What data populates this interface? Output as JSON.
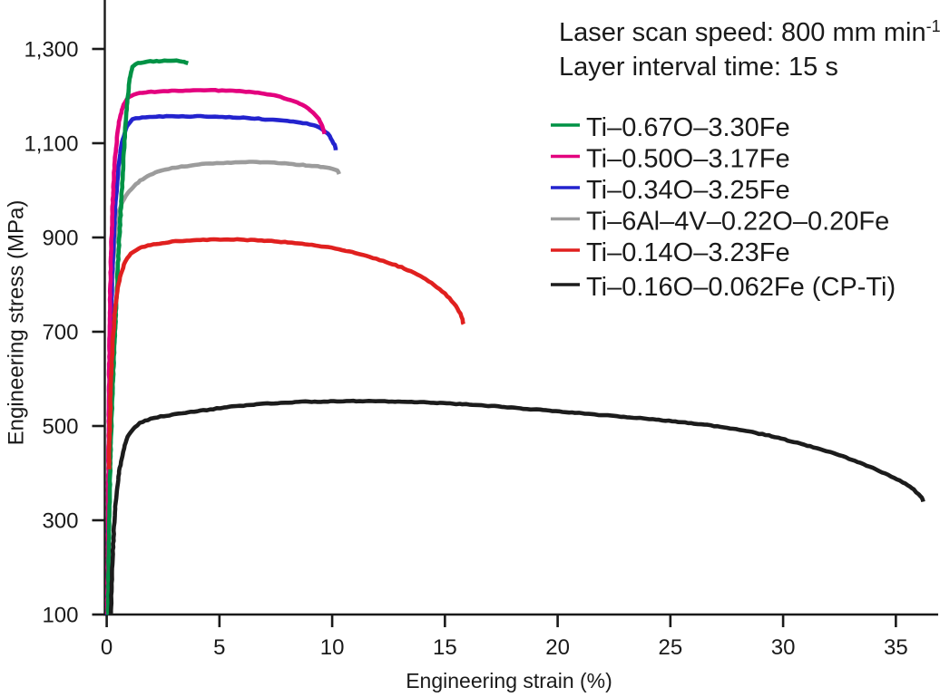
{
  "chart_data": {
    "type": "line",
    "title": "",
    "xlabel": "Engineering strain (%)",
    "ylabel": "Engineering stress (MPa)",
    "xlim": [
      0,
      37
    ],
    "ylim": [
      100,
      1400
    ],
    "xticks": [
      0,
      5,
      10,
      15,
      20,
      25,
      30,
      35
    ],
    "yticks": [
      100,
      300,
      500,
      700,
      900,
      1100,
      1300
    ],
    "ytick_labels": [
      "100",
      "300",
      "500",
      "700",
      "900",
      "1,100",
      "1,300"
    ],
    "grid": false,
    "legend_position": "upper right",
    "annotations": [
      {
        "text": "Laser scan speed: 800 mm min",
        "sup": "-1"
      },
      {
        "text": "Layer interval time: 15 s",
        "sup": ""
      }
    ],
    "series": [
      {
        "name": "Ti–0.67O–3.30Fe",
        "color": "#009245",
        "points": [
          [
            0.06,
            100
          ],
          [
            0.1,
            260
          ],
          [
            0.15,
            390
          ],
          [
            0.21,
            500
          ],
          [
            0.29,
            610
          ],
          [
            0.37,
            700
          ],
          [
            0.46,
            800
          ],
          [
            0.55,
            890
          ],
          [
            0.64,
            970
          ],
          [
            0.74,
            1060
          ],
          [
            0.84,
            1140
          ],
          [
            0.94,
            1200
          ],
          [
            1.04,
            1242
          ],
          [
            1.14,
            1261
          ],
          [
            1.28,
            1268
          ],
          [
            1.5,
            1271
          ],
          [
            1.8,
            1273
          ],
          [
            2.2,
            1274
          ],
          [
            2.7,
            1275
          ],
          [
            3.1,
            1275
          ],
          [
            3.35,
            1274
          ],
          [
            3.5,
            1272
          ],
          [
            3.62,
            1269
          ]
        ]
      },
      {
        "name": "Ti–0.50O–3.17Fe",
        "color": "#E3007E",
        "points": [
          [
            0.03,
            100
          ],
          [
            0.06,
            320
          ],
          [
            0.1,
            560
          ],
          [
            0.15,
            760
          ],
          [
            0.22,
            910
          ],
          [
            0.31,
            1020
          ],
          [
            0.42,
            1095
          ],
          [
            0.55,
            1145
          ],
          [
            0.7,
            1175
          ],
          [
            0.88,
            1192
          ],
          [
            1.08,
            1200
          ],
          [
            1.35,
            1205
          ],
          [
            1.75,
            1208
          ],
          [
            2.4,
            1210
          ],
          [
            3.2,
            1211
          ],
          [
            4.0,
            1212
          ],
          [
            4.8,
            1212
          ],
          [
            5.6,
            1211
          ],
          [
            6.3,
            1209
          ],
          [
            7.0,
            1205
          ],
          [
            7.7,
            1198
          ],
          [
            8.3,
            1189
          ],
          [
            8.8,
            1178
          ],
          [
            9.15,
            1165
          ],
          [
            9.4,
            1151
          ],
          [
            9.55,
            1137
          ],
          [
            9.65,
            1120
          ]
        ]
      },
      {
        "name": "Ti–0.34O–3.25Fe",
        "color": "#2323CE",
        "points": [
          [
            0.03,
            100
          ],
          [
            0.07,
            300
          ],
          [
            0.12,
            520
          ],
          [
            0.18,
            700
          ],
          [
            0.26,
            840
          ],
          [
            0.36,
            945
          ],
          [
            0.48,
            1025
          ],
          [
            0.62,
            1085
          ],
          [
            0.78,
            1120
          ],
          [
            0.95,
            1140
          ],
          [
            1.15,
            1150
          ],
          [
            1.45,
            1154
          ],
          [
            1.9,
            1156
          ],
          [
            2.5,
            1157
          ],
          [
            3.2,
            1157
          ],
          [
            4.0,
            1157
          ],
          [
            4.8,
            1156
          ],
          [
            5.6,
            1155
          ],
          [
            6.4,
            1153
          ],
          [
            7.2,
            1150
          ],
          [
            8.0,
            1147
          ],
          [
            8.7,
            1143
          ],
          [
            9.3,
            1136
          ],
          [
            9.7,
            1125
          ],
          [
            9.95,
            1110
          ],
          [
            10.1,
            1096
          ],
          [
            10.17,
            1085
          ]
        ]
      },
      {
        "name": "Ti–6Al–4V–0.22O–0.20Fe",
        "color": "#9C9C9C",
        "points": [
          [
            0.04,
            100
          ],
          [
            0.08,
            300
          ],
          [
            0.13,
            540
          ],
          [
            0.2,
            730
          ],
          [
            0.28,
            840
          ],
          [
            0.38,
            905
          ],
          [
            0.5,
            945
          ],
          [
            0.65,
            970
          ],
          [
            0.85,
            988
          ],
          [
            1.1,
            1003
          ],
          [
            1.4,
            1017
          ],
          [
            1.8,
            1030
          ],
          [
            2.3,
            1040
          ],
          [
            2.9,
            1047
          ],
          [
            3.6,
            1052
          ],
          [
            4.4,
            1056
          ],
          [
            5.2,
            1058
          ],
          [
            6.0,
            1060
          ],
          [
            6.8,
            1060
          ],
          [
            7.6,
            1058
          ],
          [
            8.4,
            1055
          ],
          [
            9.1,
            1052
          ],
          [
            9.6,
            1049
          ],
          [
            10.0,
            1046
          ],
          [
            10.22,
            1042
          ],
          [
            10.32,
            1035
          ]
        ]
      },
      {
        "name": "Ti–0.14O–3.23Fe",
        "color": "#E0201F",
        "points": [
          [
            0.1,
            408
          ],
          [
            0.14,
            500
          ],
          [
            0.19,
            590
          ],
          [
            0.26,
            670
          ],
          [
            0.35,
            735
          ],
          [
            0.47,
            785
          ],
          [
            0.63,
            822
          ],
          [
            0.83,
            848
          ],
          [
            1.08,
            866
          ],
          [
            1.45,
            877
          ],
          [
            1.95,
            884
          ],
          [
            2.6,
            889
          ],
          [
            3.4,
            893
          ],
          [
            4.3,
            895
          ],
          [
            5.2,
            896
          ],
          [
            6.1,
            895
          ],
          [
            7.0,
            893
          ],
          [
            7.9,
            890
          ],
          [
            8.8,
            886
          ],
          [
            9.7,
            880
          ],
          [
            10.6,
            872
          ],
          [
            11.5,
            861
          ],
          [
            12.4,
            848
          ],
          [
            13.2,
            834
          ],
          [
            13.9,
            818
          ],
          [
            14.5,
            800
          ],
          [
            15.0,
            781
          ],
          [
            15.4,
            760
          ],
          [
            15.68,
            738
          ],
          [
            15.83,
            716
          ]
        ]
      },
      {
        "name": "Ti–0.16O–0.062Fe (CP-Ti)",
        "color": "#1C1C1C",
        "points": [
          [
            0.18,
            100
          ],
          [
            0.24,
            190
          ],
          [
            0.31,
            270
          ],
          [
            0.39,
            330
          ],
          [
            0.47,
            372
          ],
          [
            0.56,
            404
          ],
          [
            0.66,
            430
          ],
          [
            0.77,
            452
          ],
          [
            0.88,
            470
          ],
          [
            1.0,
            483
          ],
          [
            1.15,
            493
          ],
          [
            1.35,
            502
          ],
          [
            1.6,
            509
          ],
          [
            1.95,
            515
          ],
          [
            2.4,
            520
          ],
          [
            2.9,
            524
          ],
          [
            3.5,
            528
          ],
          [
            4.3,
            533
          ],
          [
            5.2,
            539
          ],
          [
            6.2,
            544
          ],
          [
            7.3,
            548
          ],
          [
            8.5,
            551
          ],
          [
            9.5,
            552
          ],
          [
            10.5,
            553
          ],
          [
            11.5,
            553
          ],
          [
            12.5,
            552
          ],
          [
            13.5,
            551
          ],
          [
            14.5,
            549
          ],
          [
            15.5,
            547
          ],
          [
            16.5,
            544
          ],
          [
            17.5,
            541
          ],
          [
            18.5,
            537
          ],
          [
            19.5,
            533
          ],
          [
            20.5,
            529
          ],
          [
            21.5,
            525
          ],
          [
            22.5,
            521
          ],
          [
            23.5,
            517
          ],
          [
            24.5,
            513
          ],
          [
            25.5,
            508
          ],
          [
            26.5,
            503
          ],
          [
            27.5,
            496
          ],
          [
            28.5,
            488
          ],
          [
            29.5,
            478
          ],
          [
            30.5,
            466
          ],
          [
            31.5,
            453
          ],
          [
            32.5,
            438
          ],
          [
            33.3,
            424
          ],
          [
            34.1,
            408
          ],
          [
            34.8,
            393
          ],
          [
            35.4,
            378
          ],
          [
            35.8,
            365
          ],
          [
            36.0,
            355
          ],
          [
            36.15,
            348
          ],
          [
            36.2,
            340
          ]
        ]
      }
    ]
  }
}
